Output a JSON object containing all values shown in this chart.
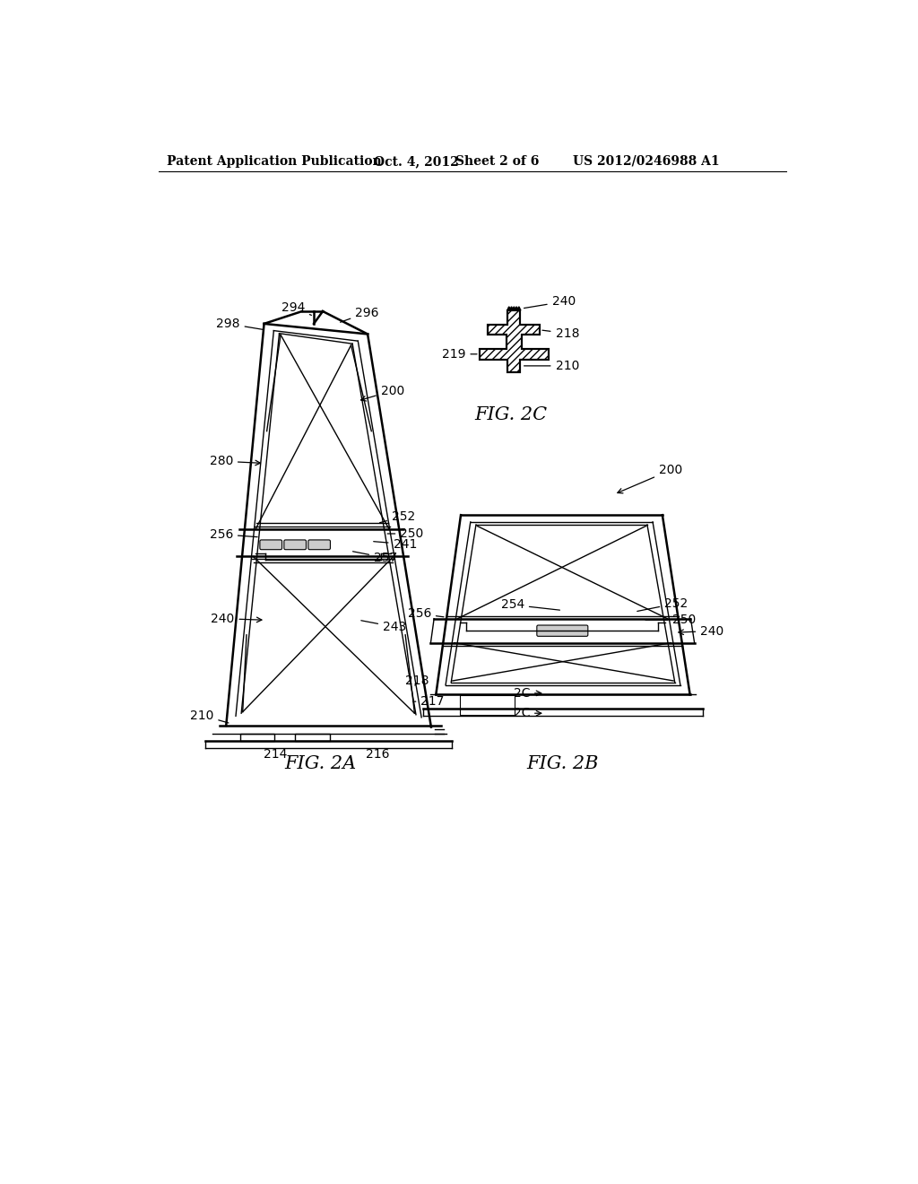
{
  "bg_color": "#ffffff",
  "header_text": "Patent Application Publication",
  "header_date": "Oct. 4, 2012",
  "header_sheet": "Sheet 2 of 6",
  "header_patent": "US 2012/0246988 A1",
  "fig2a_label": "FIG. 2A",
  "fig2b_label": "FIG. 2B",
  "fig2c_label": "FIG. 2C",
  "line_color": "#000000",
  "label_fontsize": 10,
  "header_fontsize": 10,
  "fig_label_fontsize": 15
}
